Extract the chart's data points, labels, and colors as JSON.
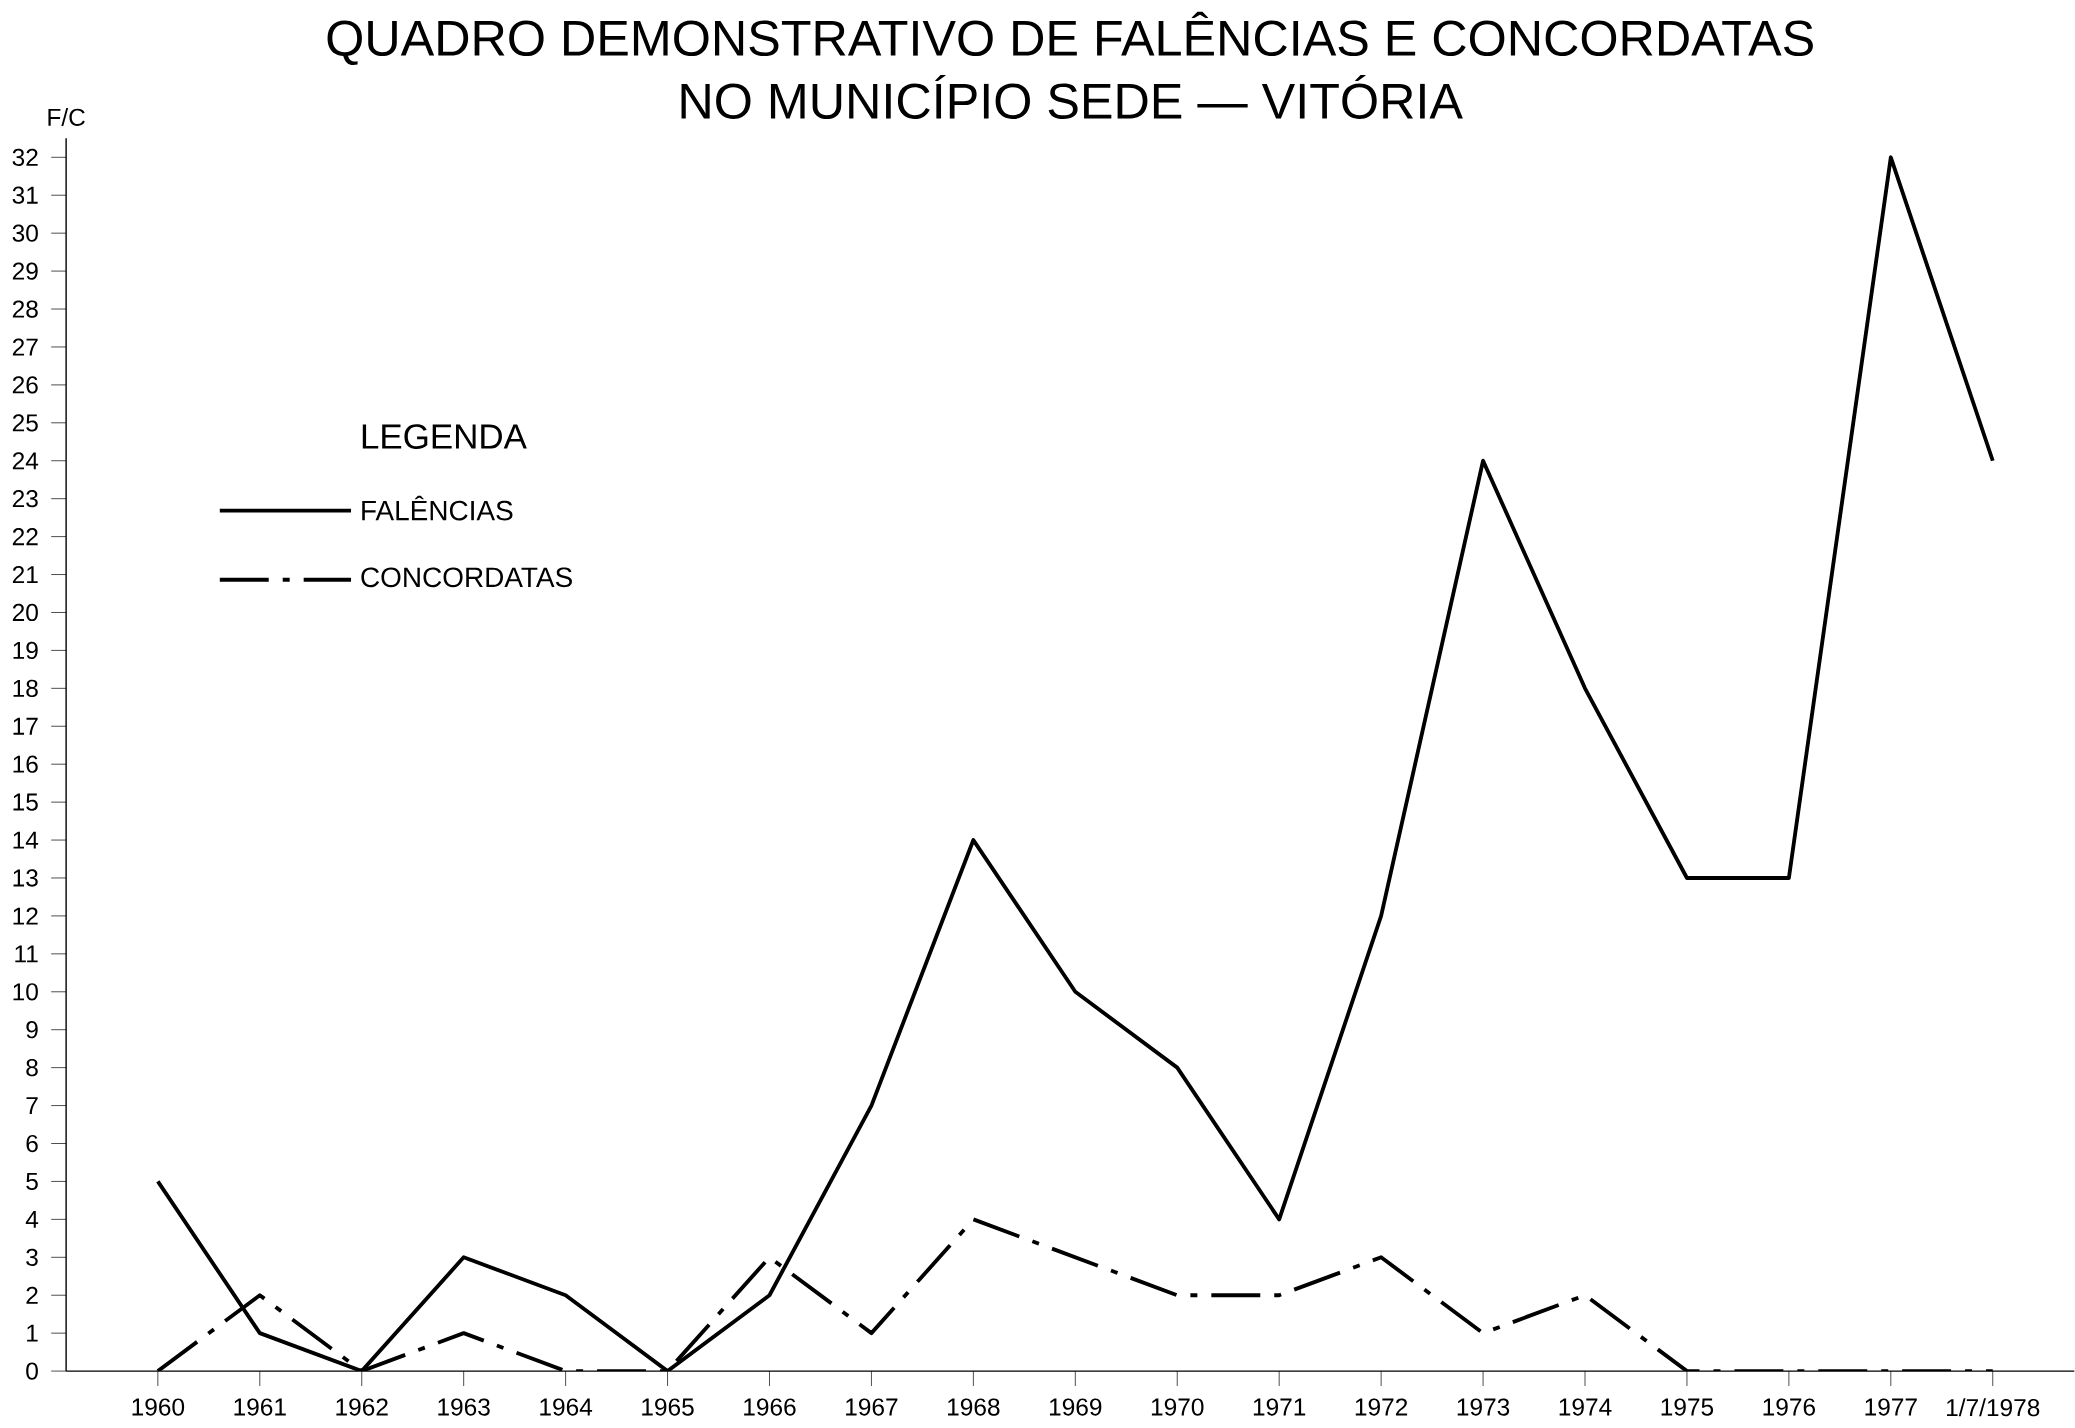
{
  "chart_data": {
    "type": "line",
    "title": "QUADRO DEMONSTRATIVO DE FALÊNCIAS E CONCORDATAS",
    "subtitle": "NO MUNICÍPIO SEDE — VITÓRIA",
    "ylabel": "F/C",
    "legend_title": "LEGENDA",
    "categories": [
      "1960",
      "1961",
      "1962",
      "1963",
      "1964",
      "1965",
      "1966",
      "1967",
      "1968",
      "1969",
      "1970",
      "1971",
      "1972",
      "1973",
      "1974",
      "1975",
      "1976",
      "1977",
      "1/7/1978"
    ],
    "series": [
      {
        "name": "FALÊNCIAS",
        "color": "#000000",
        "line_style": "solid",
        "values": [
          5,
          1,
          0,
          3,
          2,
          0,
          2,
          7,
          14,
          10,
          8,
          4,
          12,
          24,
          18,
          13,
          13,
          32,
          24
        ]
      },
      {
        "name": "CONCORDATAS",
        "color": "#000000",
        "line_style": "dashdot",
        "values": [
          0,
          2,
          0,
          1,
          0,
          0,
          3,
          1,
          4,
          3,
          2,
          2,
          3,
          1,
          2,
          0,
          0,
          0,
          0
        ]
      }
    ],
    "ylim": [
      0,
      32.5
    ],
    "yticks": [
      0,
      1,
      2,
      3,
      4,
      5,
      6,
      7,
      8,
      9,
      10,
      11,
      12,
      13,
      14,
      15,
      16,
      17,
      18,
      19,
      20,
      21,
      22,
      23,
      24,
      25,
      26,
      27,
      28,
      29,
      30,
      31,
      32
    ],
    "legend": "top left",
    "grid": false,
    "marker": "none"
  }
}
